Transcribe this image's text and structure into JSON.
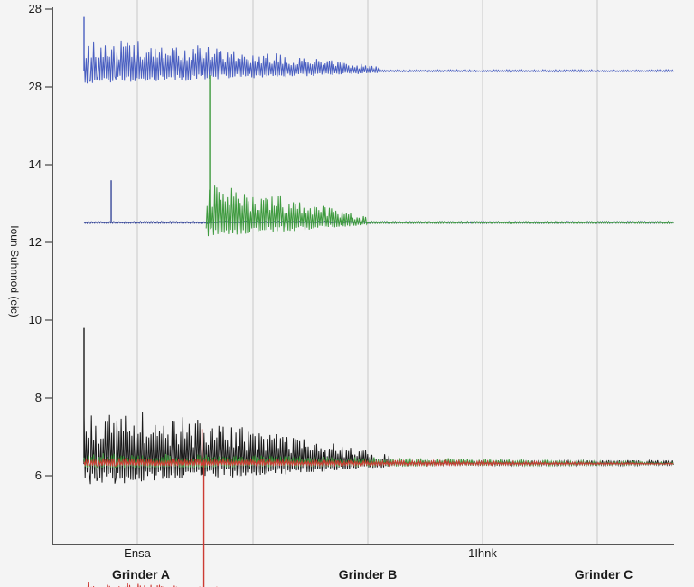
{
  "chart_data": {
    "type": "line",
    "title": "",
    "ylabel": "Ioun Suhnnod (eic)",
    "xlabel": "",
    "y_ticks": [
      "28",
      "28",
      "14",
      "12",
      "10",
      "8",
      "6"
    ],
    "x_tick_labels": [
      "Ensa",
      "1Ihnk"
    ],
    "groups": [
      "Grinder A",
      "Grinder B",
      "Grinder C"
    ],
    "x_range": [
      0,
      100
    ],
    "grid": "vertical",
    "series": [
      {
        "name": "blue",
        "color": "#4a5fc1",
        "baseline_tick": 0.8,
        "x_start": 0,
        "burst_start": 0,
        "burst_end": 50,
        "burst_amplitude": 0.45,
        "decay_end": 50,
        "rest_amplitude": 0.02,
        "spike_x": 0,
        "spike_value": 0.7
      },
      {
        "name": "navy",
        "color": "#3a4a9a",
        "baseline_tick": 2.75,
        "x_start": 0,
        "burst_start": 0,
        "burst_end": 0,
        "burst_amplitude": 0.0,
        "decay_end": 0,
        "rest_amplitude": 0.02,
        "spike_x": 4.6,
        "spike_value": 0.55
      },
      {
        "name": "green",
        "color": "#3e9a3e",
        "baseline_tick": 2.75,
        "x_start": 20.7,
        "burst_start": 20.7,
        "burst_end": 48,
        "burst_amplitude": 0.5,
        "decay_end": 48,
        "rest_amplitude": 0.02,
        "spike_x": 21.3,
        "spike_value": 1.9
      },
      {
        "name": "black",
        "color": "#1a1a1a",
        "baseline_tick": 5.85,
        "x_start": 0,
        "burst_start": 0,
        "burst_end": 52,
        "burst_amplitude": 0.75,
        "decay_end": 52,
        "rest_amplitude": 0.05,
        "spike_x": 0,
        "spike_value": 1.75
      },
      {
        "name": "green-2",
        "color": "#3e9a3e",
        "baseline_tick": 5.85,
        "x_start": 0,
        "burst_start": 0,
        "burst_end": 100,
        "burst_amplitude": 0.14,
        "decay_end": 100,
        "rest_amplitude": 0.1,
        "spike_x": -1,
        "spike_value": 0
      },
      {
        "name": "red",
        "color": "#cc3b33",
        "baseline_tick": 5.85,
        "x_start": 0,
        "burst_start": 0,
        "burst_end": 100,
        "burst_amplitude": 0.08,
        "decay_end": 100,
        "rest_amplitude": 0.06,
        "spike_x": 20,
        "spike_value": 0.45
      },
      {
        "name": "red-2",
        "color": "#cc3b33",
        "baseline_tick": 7.55,
        "x_start": 0,
        "burst_start": 0,
        "burst_end": 48,
        "burst_amplitude": 0.18,
        "decay_end": 48,
        "rest_amplitude": 0.02,
        "spike_x": 20.3,
        "spike_value": 1.75
      }
    ]
  }
}
